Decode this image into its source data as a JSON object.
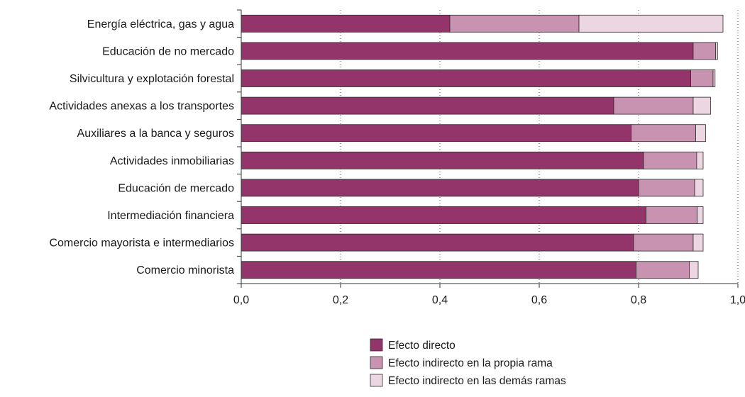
{
  "chart_data": {
    "type": "bar",
    "orientation": "horizontal",
    "stacked": true,
    "title": "",
    "xlabel": "",
    "ylabel": "",
    "xlim": [
      0,
      1.0
    ],
    "xticks": [
      "0,0",
      "0,2",
      "0,4",
      "0,6",
      "0,8",
      "1,0"
    ],
    "grid": "vertical dotted",
    "legend_position": "bottom",
    "categories": [
      "Energía eléctrica, gas  y agua",
      "Educación de no mercado",
      "Silvicultura y explotación forestal",
      "Actividades anexas a los transportes",
      "Auxiliares a la banca y seguros",
      "Actividades inmobiliarias",
      "Educación de mercado",
      "Intermediación financiera",
      "Comercio mayorista e intermediarios",
      "Comercio minorista"
    ],
    "series": [
      {
        "name": "Efecto directo",
        "color": "#93356b",
        "values": [
          0.42,
          0.91,
          0.905,
          0.75,
          0.785,
          0.81,
          0.8,
          0.815,
          0.79,
          0.795
        ]
      },
      {
        "name": "Efecto indirecto en la propia rama",
        "color": "#c793b0",
        "values": [
          0.26,
          0.045,
          0.045,
          0.16,
          0.13,
          0.107,
          0.113,
          0.103,
          0.12,
          0.107
        ]
      },
      {
        "name": "Efecto indirecto en las demás ramas",
        "color": "#ecd6e2",
        "values": [
          0.29,
          0.004,
          0.004,
          0.035,
          0.02,
          0.013,
          0.017,
          0.012,
          0.02,
          0.018
        ]
      }
    ]
  }
}
